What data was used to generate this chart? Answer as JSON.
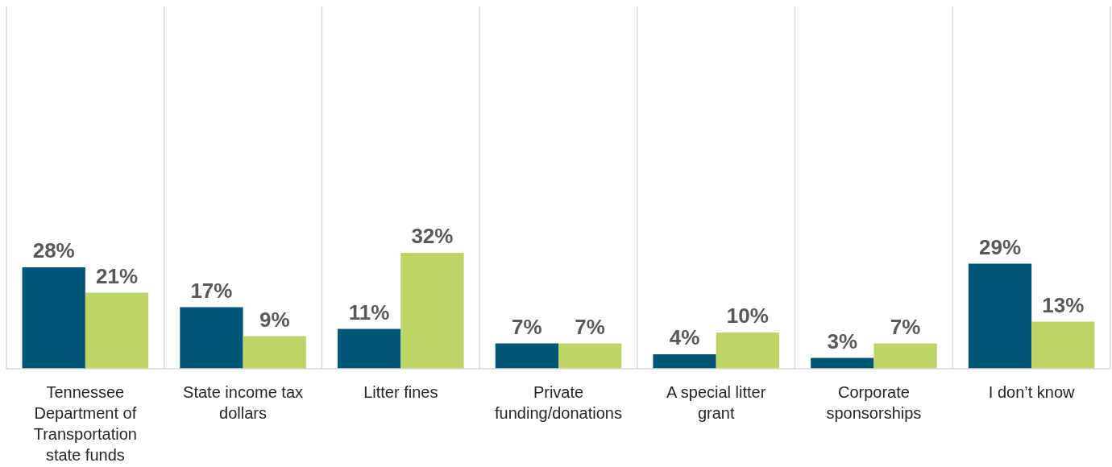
{
  "chart_data": {
    "type": "bar",
    "categories": [
      "Tennessee Department of Transportation state funds",
      "State income tax dollars",
      "Litter fines",
      "Private funding/donations",
      "A special litter grant",
      "Corporate sponsorships",
      "I don’t know"
    ],
    "series": [
      {
        "color": "#005677",
        "values": [
          28,
          17,
          11,
          7,
          4,
          3,
          29
        ],
        "value_labels": [
          "28%",
          "17%",
          "11%",
          "7%",
          "4%",
          "3%",
          "29%"
        ]
      },
      {
        "color": "#bdd567",
        "values": [
          21,
          9,
          32,
          7,
          10,
          7,
          13
        ],
        "value_labels": [
          "21%",
          "9%",
          "32%",
          "7%",
          "10%",
          "7%",
          "13%"
        ]
      }
    ],
    "ylim": [
      0,
      100
    ],
    "grid": "x"
  }
}
